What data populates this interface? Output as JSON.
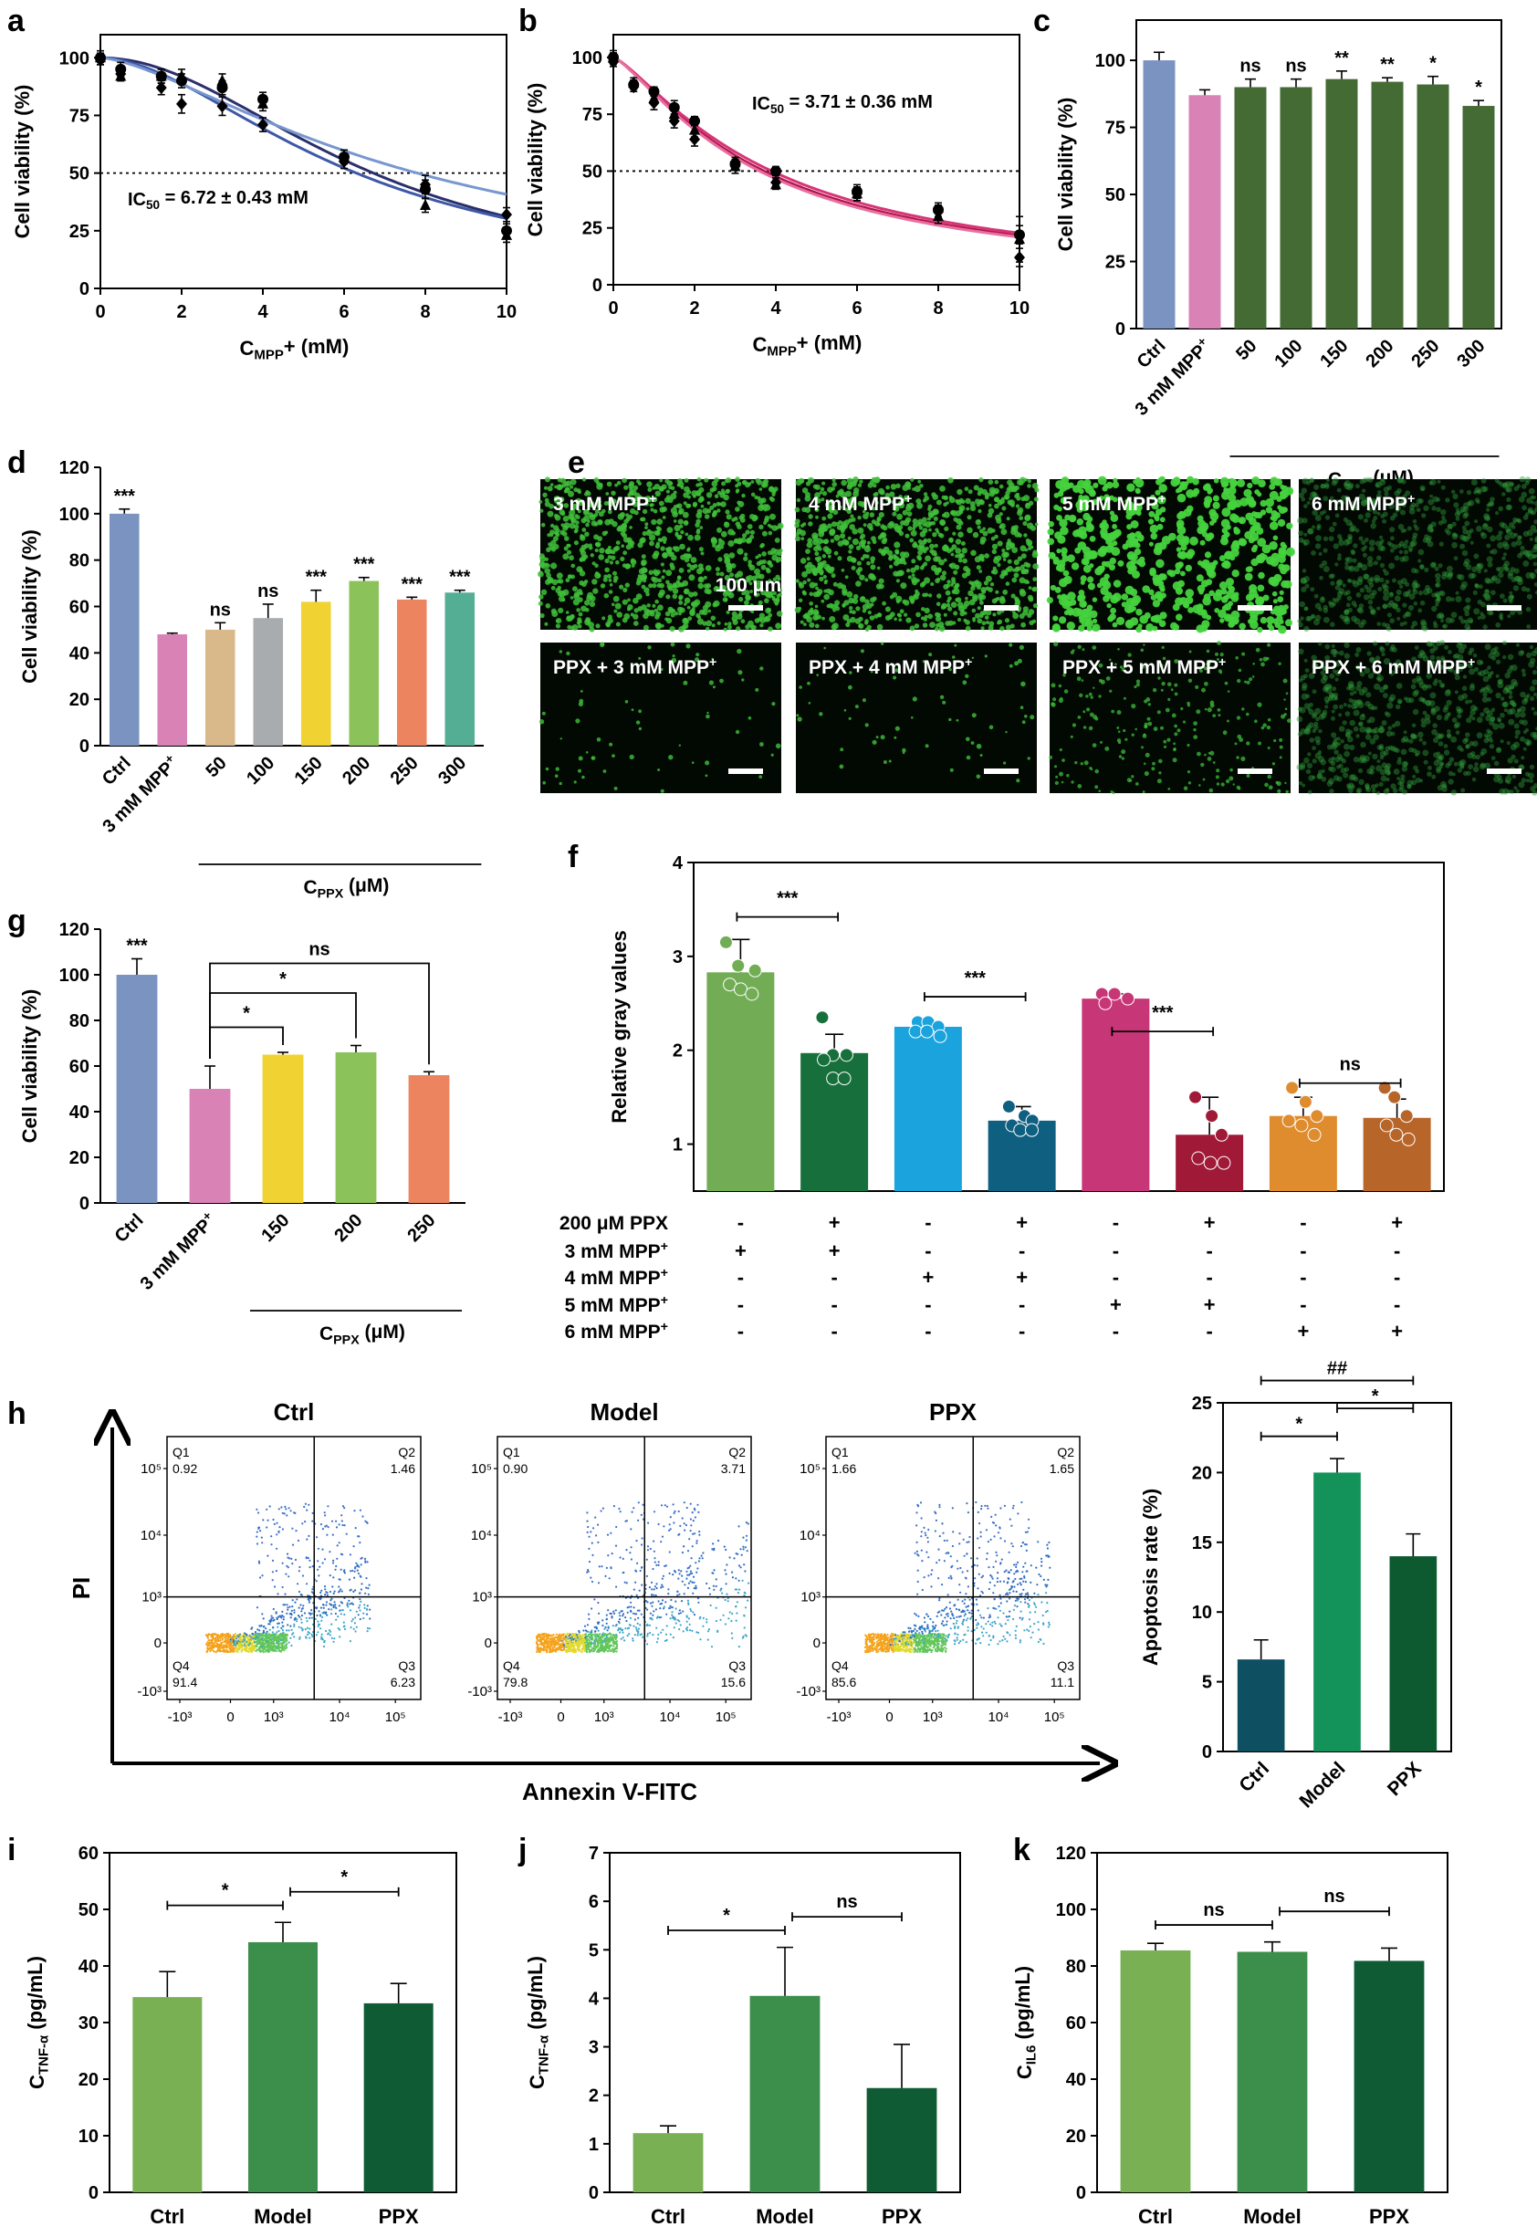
{
  "figure": {
    "panel_labels": {
      "a": "a",
      "b": "b",
      "c": "c",
      "d": "d",
      "e": "e",
      "f": "f",
      "g": "g",
      "h": "h",
      "i": "i",
      "j": "j",
      "k": "k"
    },
    "colors": {
      "ctrl_blue": "#7b93c0",
      "mpp_pink": "#d982b5",
      "green_dark": "#456b34",
      "c50": "#d9b98a",
      "c100": "#a8acae",
      "c150": "#f0d232",
      "c200": "#8cc25a",
      "c250": "#ec8460",
      "c300": "#54ae93",
      "light_green": "#79b054",
      "mid_green": "#3c8f4a",
      "deep_green": "#0f5c34"
    }
  },
  "chart_data": [
    {
      "id": "a",
      "type": "scatter",
      "xlabel_main": "C",
      "xlabel_sub": "MPP",
      "xlabel_tail": "+ (mM)",
      "ylabel": "Cell viability (%)",
      "xlim": [
        0,
        10
      ],
      "ylim": [
        0,
        110
      ],
      "xticks": [
        0,
        2,
        4,
        6,
        8,
        10
      ],
      "yticks": [
        0,
        25,
        50,
        75,
        100
      ],
      "annotation_main": "IC",
      "annotation_sub": "50",
      "annotation_tail": " = 6.72 ± 0.43 mM",
      "reference_line": 50,
      "curve_colors": [
        "#2a2f6b",
        "#3d58a6",
        "#7896cf"
      ],
      "series": [
        {
          "name": "rep1",
          "marker": "circle",
          "x": [
            0,
            0.5,
            1.5,
            2,
            3,
            4,
            6,
            8,
            10
          ],
          "y": [
            100,
            95,
            92,
            90,
            87,
            82,
            57,
            43,
            25
          ],
          "err": [
            3,
            3,
            3,
            3,
            3,
            3,
            3,
            4,
            3
          ]
        },
        {
          "name": "rep2",
          "marker": "diamond",
          "x": [
            0,
            0.5,
            1.5,
            2,
            3,
            4,
            6,
            8,
            10
          ],
          "y": [
            99,
            93,
            87,
            80,
            79,
            71,
            55,
            45,
            32
          ],
          "err": [
            2,
            3,
            3,
            4,
            4,
            3,
            3,
            4,
            3
          ]
        },
        {
          "name": "rep3",
          "marker": "triangle",
          "x": [
            0,
            0.5,
            1.5,
            2,
            3,
            4,
            6,
            8,
            10
          ],
          "y": [
            100,
            92,
            92,
            92,
            90,
            80,
            57,
            36,
            23
          ],
          "err": [
            2,
            2,
            3,
            3,
            3,
            3,
            3,
            3,
            3
          ]
        }
      ]
    },
    {
      "id": "b",
      "type": "scatter",
      "xlabel_main": "C",
      "xlabel_sub": "MPP",
      "xlabel_tail": "+ (mM)",
      "ylabel": "Cell viability (%)",
      "xlim": [
        0,
        10
      ],
      "ylim": [
        0,
        110
      ],
      "xticks": [
        0,
        2,
        4,
        6,
        8,
        10
      ],
      "yticks": [
        0,
        25,
        50,
        75,
        100
      ],
      "annotation_main": "IC",
      "annotation_sub": "50",
      "annotation_tail": " = 3.71 ± 0.36 mM",
      "reference_line": 50,
      "curve_colors": [
        "#b0174b",
        "#d63477",
        "#e86fa0"
      ],
      "series": [
        {
          "name": "rep1",
          "marker": "circle",
          "x": [
            0,
            0.5,
            1,
            1.5,
            2,
            3,
            4,
            6,
            8,
            10
          ],
          "y": [
            100,
            88,
            85,
            78,
            72,
            53,
            50,
            41,
            33,
            22
          ],
          "err": [
            3,
            2,
            2,
            3,
            2,
            2,
            2,
            3,
            3,
            4
          ]
        },
        {
          "name": "rep2",
          "marker": "diamond",
          "x": [
            0,
            0.5,
            1,
            1.5,
            2,
            3,
            4,
            6,
            8,
            10
          ],
          "y": [
            98,
            87,
            80,
            72,
            64,
            54,
            45,
            40,
            32,
            12
          ],
          "err": [
            2,
            2,
            3,
            3,
            3,
            2,
            2,
            3,
            3,
            4
          ]
        },
        {
          "name": "rep3",
          "marker": "triangle",
          "x": [
            0,
            0.5,
            1,
            1.5,
            2,
            3,
            4,
            6,
            8,
            10
          ],
          "y": [
            100,
            89,
            82,
            75,
            68,
            52,
            44,
            40,
            30,
            20
          ],
          "err": [
            2,
            2,
            2,
            2,
            3,
            3,
            2,
            3,
            3,
            10
          ]
        }
      ]
    },
    {
      "id": "c",
      "type": "bar",
      "ylabel": "Cell viability (%)",
      "ylim": [
        0,
        115
      ],
      "yticks": [
        0,
        25,
        50,
        75,
        100
      ],
      "categories": [
        "Ctrl",
        "3 mM MPP⁺",
        "50",
        "100",
        "150",
        "200",
        "250",
        "300"
      ],
      "values": [
        100,
        87,
        90,
        90,
        93,
        92,
        91,
        83
      ],
      "errors": [
        3,
        2,
        3,
        3,
        3,
        1.5,
        3,
        2
      ],
      "colors": [
        "#7b93c0",
        "#d982b5",
        "#456b34",
        "#456b34",
        "#456b34",
        "#456b34",
        "#456b34",
        "#456b34"
      ],
      "significance": [
        "",
        "",
        "ns",
        "ns",
        "**",
        "**",
        "*",
        "*"
      ],
      "group_label_main": "C",
      "group_label_sub": "PPX",
      "group_label_tail": " (μM)",
      "group_range": [
        2,
        7
      ]
    },
    {
      "id": "d",
      "type": "bar",
      "ylabel": "Cell viability (%)",
      "ylim": [
        0,
        120
      ],
      "yticks": [
        0,
        20,
        40,
        60,
        80,
        100,
        120
      ],
      "categories": [
        "Ctrl",
        "3 mM MPP⁺",
        "50",
        "100",
        "150",
        "200",
        "250",
        "300"
      ],
      "values": [
        100,
        48,
        50,
        55,
        62,
        71,
        63,
        66
      ],
      "errors": [
        2,
        0.5,
        3,
        6,
        5,
        1.5,
        1,
        1
      ],
      "colors": [
        "#7b93c0",
        "#d982b5",
        "#d9b98a",
        "#a8acae",
        "#f0d232",
        "#8cc25a",
        "#ec8460",
        "#54ae93"
      ],
      "significance": [
        "***",
        "",
        "ns",
        "ns",
        "***",
        "***",
        "***",
        "***"
      ],
      "group_label_main": "C",
      "group_label_sub": "PPX",
      "group_label_tail": " (μM)",
      "group_range": [
        2,
        7
      ]
    },
    {
      "id": "g",
      "type": "bar",
      "ylabel": "Cell viability (%)",
      "ylim": [
        0,
        120
      ],
      "yticks": [
        0,
        20,
        40,
        60,
        80,
        100,
        120
      ],
      "categories": [
        "Ctrl",
        "3 mM MPP⁺",
        "150",
        "200",
        "250"
      ],
      "values": [
        100,
        50,
        65,
        66,
        56
      ],
      "errors": [
        7,
        10,
        1,
        3,
        1.5
      ],
      "colors": [
        "#7b93c0",
        "#d982b5",
        "#f0d232",
        "#8cc25a",
        "#ec8460"
      ],
      "significance": [
        "***",
        "",
        "",
        "",
        ""
      ],
      "brackets": [
        {
          "from": 1,
          "to": 2,
          "label": "*"
        },
        {
          "from": 1,
          "to": 3,
          "label": "*"
        },
        {
          "from": 1,
          "to": 4,
          "label": "ns"
        }
      ],
      "group_label_main": "C",
      "group_label_sub": "PPX",
      "group_label_tail": " (μM)",
      "group_range": [
        2,
        4
      ]
    },
    {
      "id": "f",
      "type": "bar",
      "ylabel": "Relative gray values",
      "ylim": [
        0.5,
        4
      ],
      "yticks": [
        1,
        2,
        3,
        4
      ],
      "values": [
        2.83,
        1.97,
        2.25,
        1.25,
        2.55,
        1.1,
        1.3,
        1.28
      ],
      "errors": [
        0.35,
        0.2,
        0.05,
        0.15,
        0.05,
        0.4,
        0.2,
        0.2
      ],
      "colors": [
        "#72ad55",
        "#17703c",
        "#1aa3dc",
        "#0f5f81",
        "#c73677",
        "#a01a37",
        "#df8c2f",
        "#b8652a"
      ],
      "dots": [
        [
          3.15,
          2.9,
          2.85,
          2.7,
          2.65,
          2.6
        ],
        [
          2.35,
          1.95,
          1.95,
          1.9,
          1.7,
          1.7
        ],
        [
          2.3,
          2.3,
          2.25,
          2.2,
          2.2,
          2.15
        ],
        [
          1.4,
          1.3,
          1.25,
          1.2,
          1.15,
          1.15
        ],
        [
          2.6,
          2.6,
          2.55,
          2.5
        ],
        [
          1.5,
          1.3,
          1.1,
          0.85,
          0.8,
          0.8
        ],
        [
          1.6,
          1.45,
          1.3,
          1.25,
          1.2,
          1.1
        ],
        [
          1.6,
          1.5,
          1.3,
          1.2,
          1.1,
          1.05
        ]
      ],
      "brackets": [
        {
          "from": 0,
          "to": 1,
          "label": "***"
        },
        {
          "from": 2,
          "to": 3,
          "label": "***"
        },
        {
          "from": 4,
          "to": 5,
          "label": "***"
        },
        {
          "from": 6,
          "to": 7,
          "label": "ns"
        }
      ],
      "condition_rows": [
        {
          "label": "200 μM PPX",
          "values": [
            "-",
            "+",
            "-",
            "+",
            "-",
            "+",
            "-",
            "+"
          ]
        },
        {
          "label": "3 mM MPP⁺",
          "values": [
            "+",
            "+",
            "-",
            "-",
            "-",
            "-",
            "-",
            "-"
          ]
        },
        {
          "label": "4 mM MPP⁺",
          "values": [
            "-",
            "-",
            "+",
            "+",
            "-",
            "-",
            "-",
            "-"
          ]
        },
        {
          "label": "5 mM MPP⁺",
          "values": [
            "-",
            "-",
            "-",
            "-",
            "+",
            "+",
            "-",
            "-"
          ]
        },
        {
          "label": "6 mM MPP⁺",
          "values": [
            "-",
            "-",
            "-",
            "-",
            "-",
            "-",
            "+",
            "+"
          ]
        }
      ]
    },
    {
      "id": "h-bar",
      "type": "bar",
      "ylabel": "Apoptosis rate (%)",
      "ylim": [
        0,
        25
      ],
      "yticks": [
        0,
        5,
        10,
        15,
        20,
        25
      ],
      "categories": [
        "Ctrl",
        "Model",
        "PPX"
      ],
      "values": [
        6.6,
        20.0,
        14.0
      ],
      "errors": [
        1.4,
        1.0,
        1.6
      ],
      "colors": [
        "#0e4f62",
        "#139259",
        "#0e5a30"
      ],
      "brackets": [
        {
          "from": 0,
          "to": 1,
          "label": "*",
          "level": 0
        },
        {
          "from": 1,
          "to": 2,
          "label": "*",
          "level": 1
        },
        {
          "from": 0,
          "to": 2,
          "label": "##",
          "level": 2
        }
      ]
    },
    {
      "id": "i",
      "type": "bar",
      "ylabel_main": "C",
      "ylabel_sub": "TNF-α",
      "ylabel_tail": " (pg/mL)",
      "ylim": [
        0,
        60
      ],
      "yticks": [
        0,
        10,
        20,
        30,
        40,
        50,
        60
      ],
      "categories": [
        "Ctrl",
        "Model",
        "PPX"
      ],
      "values": [
        34.5,
        44.2,
        33.4
      ],
      "errors": [
        4.5,
        3.5,
        3.5
      ],
      "colors": [
        "#79b054",
        "#3c8f4a",
        "#0f5c34"
      ],
      "brackets": [
        {
          "from": 0,
          "to": 1,
          "label": "*"
        },
        {
          "from": 1,
          "to": 2,
          "label": "*"
        }
      ]
    },
    {
      "id": "j",
      "type": "bar",
      "ylabel_main": "C",
      "ylabel_sub": "TNF-α",
      "ylabel_tail": " (pg/mL)",
      "ylim": [
        0,
        7
      ],
      "yticks": [
        0,
        1,
        2,
        3,
        4,
        5,
        6,
        7
      ],
      "categories": [
        "Ctrl",
        "Model",
        "PPX"
      ],
      "values": [
        1.22,
        4.05,
        2.15
      ],
      "errors": [
        0.15,
        1.0,
        0.9
      ],
      "colors": [
        "#79b054",
        "#3c8f4a",
        "#0f5c34"
      ],
      "brackets": [
        {
          "from": 0,
          "to": 1,
          "label": "*"
        },
        {
          "from": 1,
          "to": 2,
          "label": "ns"
        }
      ]
    },
    {
      "id": "k",
      "type": "bar",
      "ylabel_main": "C",
      "ylabel_sub": "IL6",
      "ylabel_tail": " (pg/mL)",
      "ylim": [
        0,
        120
      ],
      "yticks": [
        0,
        20,
        40,
        60,
        80,
        100,
        120
      ],
      "categories": [
        "Ctrl",
        "Model",
        "PPX"
      ],
      "values": [
        85.5,
        85.0,
        81.8
      ],
      "errors": [
        2.5,
        3.5,
        4.5
      ],
      "colors": [
        "#79b054",
        "#3c8f4a",
        "#0f5c34"
      ],
      "brackets": [
        {
          "from": 0,
          "to": 1,
          "label": "ns"
        },
        {
          "from": 1,
          "to": 2,
          "label": "ns"
        }
      ]
    }
  ],
  "panel_e": {
    "images": [
      {
        "label": "3 mM MPP",
        "sup": "+",
        "scale_text": "100 μm",
        "style": "dense"
      },
      {
        "label": "4 mM MPP",
        "sup": "+",
        "scale_text": "",
        "style": "dense"
      },
      {
        "label": "5 mM MPP",
        "sup": "+",
        "scale_text": "",
        "style": "clumps"
      },
      {
        "label": "6 mM MPP",
        "sup": "+",
        "scale_text": "",
        "style": "dim"
      },
      {
        "label": "PPX + 3 mM MPP",
        "sup": "+",
        "scale_text": "",
        "style": "sparse"
      },
      {
        "label": "PPX + 4 mM MPP",
        "sup": "+",
        "scale_text": "",
        "style": "sparse"
      },
      {
        "label": "PPX + 5 mM MPP",
        "sup": "+",
        "scale_text": "",
        "style": "medium"
      },
      {
        "label": "PPX + 6 mM MPP",
        "sup": "+",
        "scale_text": "",
        "style": "dim"
      }
    ]
  },
  "panel_h": {
    "x_axis_label": "Annexin V-FITC",
    "y_axis_label": "PI",
    "plots": [
      {
        "title": "Ctrl",
        "q1": "0.92",
        "q2": "1.46",
        "q3": "6.23",
        "q4": "91.4"
      },
      {
        "title": "Model",
        "q1": "0.90",
        "q2": "3.71",
        "q3": "15.6",
        "q4": "79.8"
      },
      {
        "title": "PPX",
        "q1": "1.66",
        "q2": "1.65",
        "q3": "11.1",
        "q4": "85.6"
      }
    ],
    "quadrant_labels": [
      "Q1",
      "Q2",
      "Q3",
      "Q4"
    ],
    "y_tick_labels": [
      "10⁵",
      "10⁴",
      "10³",
      "0",
      "-10³"
    ],
    "x_tick_labels": [
      "-10³",
      "0",
      "10³",
      "10⁴",
      "10⁵"
    ]
  }
}
